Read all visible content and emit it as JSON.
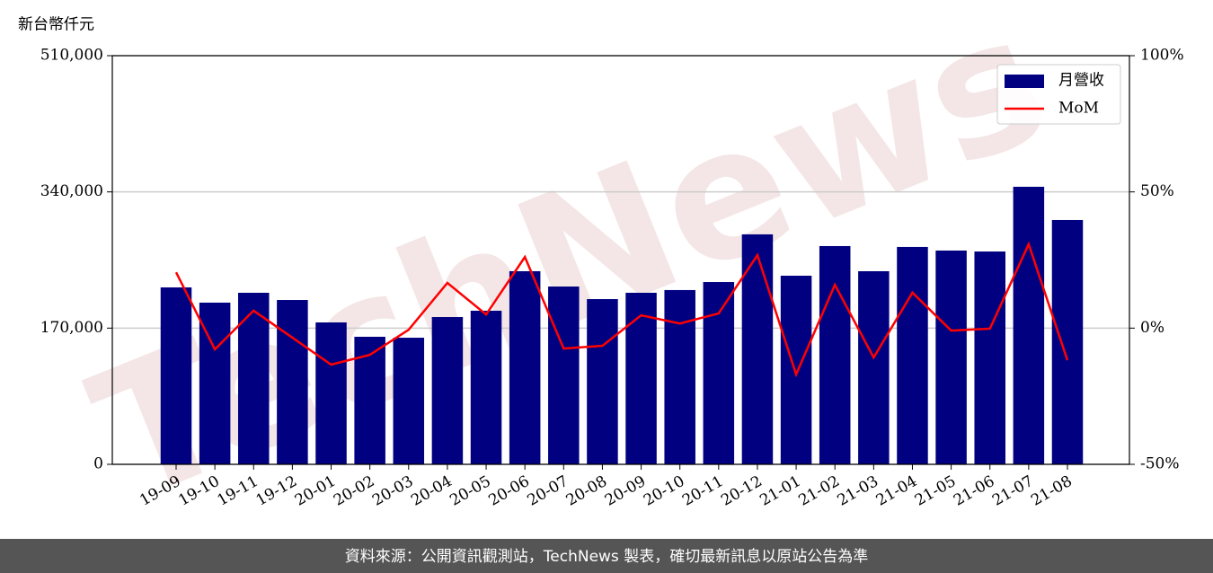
{
  "chart_data": {
    "type": "bar",
    "y_axis_label": "新台幣仟元",
    "watermark": "TechNews",
    "categories": [
      "19-09",
      "19-10",
      "19-11",
      "19-12",
      "20-01",
      "20-02",
      "20-03",
      "20-04",
      "20-05",
      "20-06",
      "20-07",
      "20-08",
      "20-09",
      "20-10",
      "20-11",
      "20-12",
      "21-01",
      "21-02",
      "21-03",
      "21-04",
      "21-05",
      "21-06",
      "21-07",
      "21-08"
    ],
    "series": [
      {
        "name": "月營收",
        "type": "bar",
        "color": "#000080",
        "values": [
          220800,
          201800,
          214100,
          205100,
          177100,
          159200,
          158000,
          183800,
          191700,
          241000,
          221900,
          206200,
          214100,
          217500,
          227500,
          287000,
          235400,
          272400,
          241000,
          271300,
          266800,
          265600,
          346400,
          304900
        ]
      },
      {
        "name": "MoM",
        "type": "line",
        "axis": "y2",
        "color": "#ff0000",
        "values": [
          20.5,
          -7.8,
          6.4,
          -3.5,
          -13.4,
          -9.8,
          -0.6,
          16.6,
          5.0,
          26.1,
          -7.5,
          -6.5,
          4.7,
          1.7,
          5.4,
          26.8,
          -17.0,
          15.9,
          -10.8,
          13.0,
          -0.9,
          -0.2,
          30.8,
          -11.8
        ]
      }
    ],
    "ylim": [
      0,
      510000
    ],
    "yticks": [
      0,
      {
        "value": 170000,
        "label": "170,000"
      },
      {
        "value": 340000,
        "label": "340,000"
      },
      {
        "value": 510000,
        "label": "510,000"
      }
    ],
    "y2lim": [
      -50,
      100
    ],
    "y2ticks": [
      {
        "value": -50,
        "label": "-50%"
      },
      {
        "value": 0,
        "label": "0%"
      },
      {
        "value": 50,
        "label": "50%"
      },
      {
        "value": 100,
        "label": "100%"
      }
    ],
    "grid": true,
    "legend": "upper right"
  },
  "footer": "資料來源：公開資訊觀測站，TechNews 製表，確切最新訊息以原站公告為準"
}
